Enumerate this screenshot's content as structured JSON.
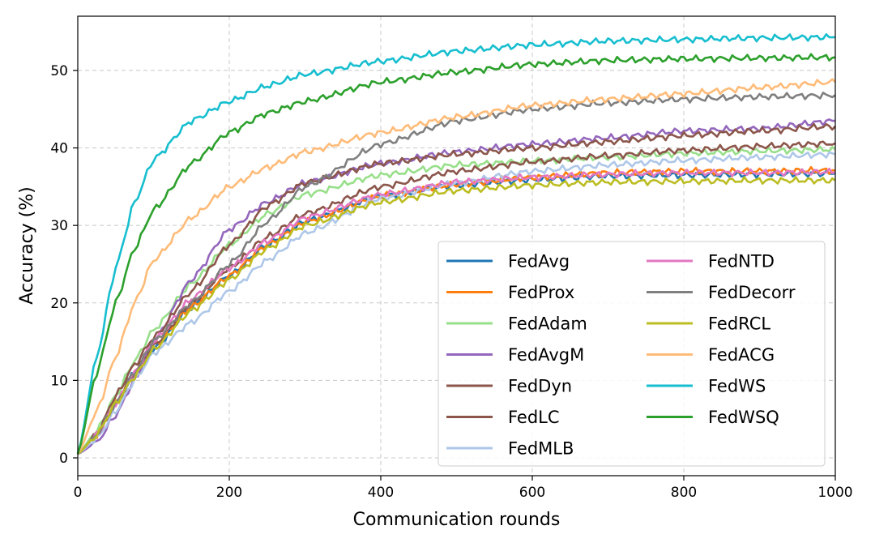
{
  "chart_data": {
    "type": "line",
    "title": "",
    "xlabel": "Communication rounds",
    "ylabel": "Accuracy (%)",
    "xlim": [
      0,
      1000
    ],
    "ylim": [
      -2.3,
      57
    ],
    "xticks": [
      0,
      200,
      400,
      600,
      800,
      1000
    ],
    "xtick_labels": [
      "0",
      "200",
      "400",
      "600",
      "800",
      "1000"
    ],
    "yticks": [
      0,
      10,
      20,
      30,
      40,
      50
    ],
    "ytick_labels": [
      "0",
      "10",
      "20",
      "30",
      "40",
      "50"
    ],
    "grid": true,
    "legend_position": "lower-right",
    "legend_columns": 2,
    "x": [
      0,
      25,
      50,
      75,
      100,
      150,
      200,
      250,
      300,
      400,
      500,
      600,
      700,
      800,
      900,
      1000
    ],
    "series": [
      {
        "name": "FedAvg",
        "color": "#1f77b4",
        "values": [
          0.5,
          3,
          7,
          11,
          14,
          19.5,
          23.5,
          27.5,
          30.5,
          33.8,
          35.2,
          35.9,
          36.4,
          36.5,
          36.6,
          36.7
        ]
      },
      {
        "name": "FedProx",
        "color": "#ff7f0e",
        "values": [
          0.5,
          3,
          7,
          11,
          14.5,
          19.5,
          23.5,
          27.5,
          30.5,
          33.8,
          35.3,
          36.2,
          36.8,
          37.0,
          37.0,
          37.1
        ]
      },
      {
        "name": "FedAdam",
        "color": "#98df8a",
        "values": [
          0.5,
          3.5,
          8,
          12.5,
          16.5,
          22.5,
          27.5,
          31.5,
          34,
          36.5,
          37.8,
          38.3,
          38.8,
          39.3,
          39.6,
          39.8
        ]
      },
      {
        "name": "FedAvgM",
        "color": "#9467bd",
        "values": [
          0.5,
          2,
          5.5,
          10,
          15,
          23,
          29.5,
          33,
          35.5,
          38,
          39.5,
          40.5,
          41.3,
          42.2,
          42.5,
          43.5
        ]
      },
      {
        "name": "FedDyn",
        "color": "#8c564b",
        "values": [
          0.5,
          3,
          8,
          12,
          15.5,
          21.5,
          27.5,
          32.5,
          35.5,
          38,
          39.2,
          40,
          40.8,
          41.6,
          42.2,
          42.8
        ]
      },
      {
        "name": "FedLC",
        "color": "#8c564b",
        "values": [
          0.5,
          3,
          7,
          11,
          14.5,
          20,
          24.5,
          28.5,
          31.5,
          35,
          37,
          38.2,
          39,
          39.7,
          40.2,
          40.6
        ]
      },
      {
        "name": "FedMLB",
        "color": "#aec7e8",
        "values": [
          0.5,
          2.5,
          6,
          10,
          13.5,
          17.5,
          21.5,
          25.5,
          29,
          33.5,
          35.5,
          37,
          37.8,
          38.4,
          38.8,
          39.2
        ]
      },
      {
        "name": "FedNTD",
        "color": "#e377c2",
        "values": [
          0.5,
          3,
          7,
          11,
          15,
          20.5,
          24.5,
          28,
          31,
          34,
          35.6,
          36.2,
          36.6,
          36.8,
          36.8,
          36.9
        ]
      },
      {
        "name": "FedDecorr",
        "color": "#7f7f7f",
        "values": [
          0.5,
          3,
          7,
          11,
          15,
          20,
          25,
          30.5,
          35,
          40.5,
          43.5,
          45,
          45.8,
          46.3,
          46.6,
          46.8
        ]
      },
      {
        "name": "FedRCL",
        "color": "#bcbd22",
        "values": [
          0.5,
          3,
          7,
          10.5,
          14,
          19,
          23,
          27,
          30,
          33,
          34.5,
          35.2,
          35.6,
          35.7,
          35.8,
          35.8
        ]
      },
      {
        "name": "FedACG",
        "color": "#ffbb78",
        "values": [
          0.5,
          6,
          13,
          20,
          25.5,
          31,
          35,
          37.5,
          39.5,
          42,
          44,
          45.5,
          46.3,
          47,
          47.8,
          48.5
        ]
      },
      {
        "name": "FedWS",
        "color": "#17becf",
        "values": [
          0.5,
          13,
          24.5,
          33,
          38.5,
          43.5,
          46,
          48,
          49.5,
          51.2,
          52.5,
          53.3,
          53.8,
          54.0,
          54.2,
          54.3
        ]
      },
      {
        "name": "FedWSQ",
        "color": "#2ca02c",
        "values": [
          0.5,
          11,
          20,
          27,
          32,
          38,
          42,
          44.5,
          46,
          48.5,
          49.8,
          50.8,
          51.3,
          51.5,
          51.6,
          51.7
        ]
      }
    ]
  }
}
